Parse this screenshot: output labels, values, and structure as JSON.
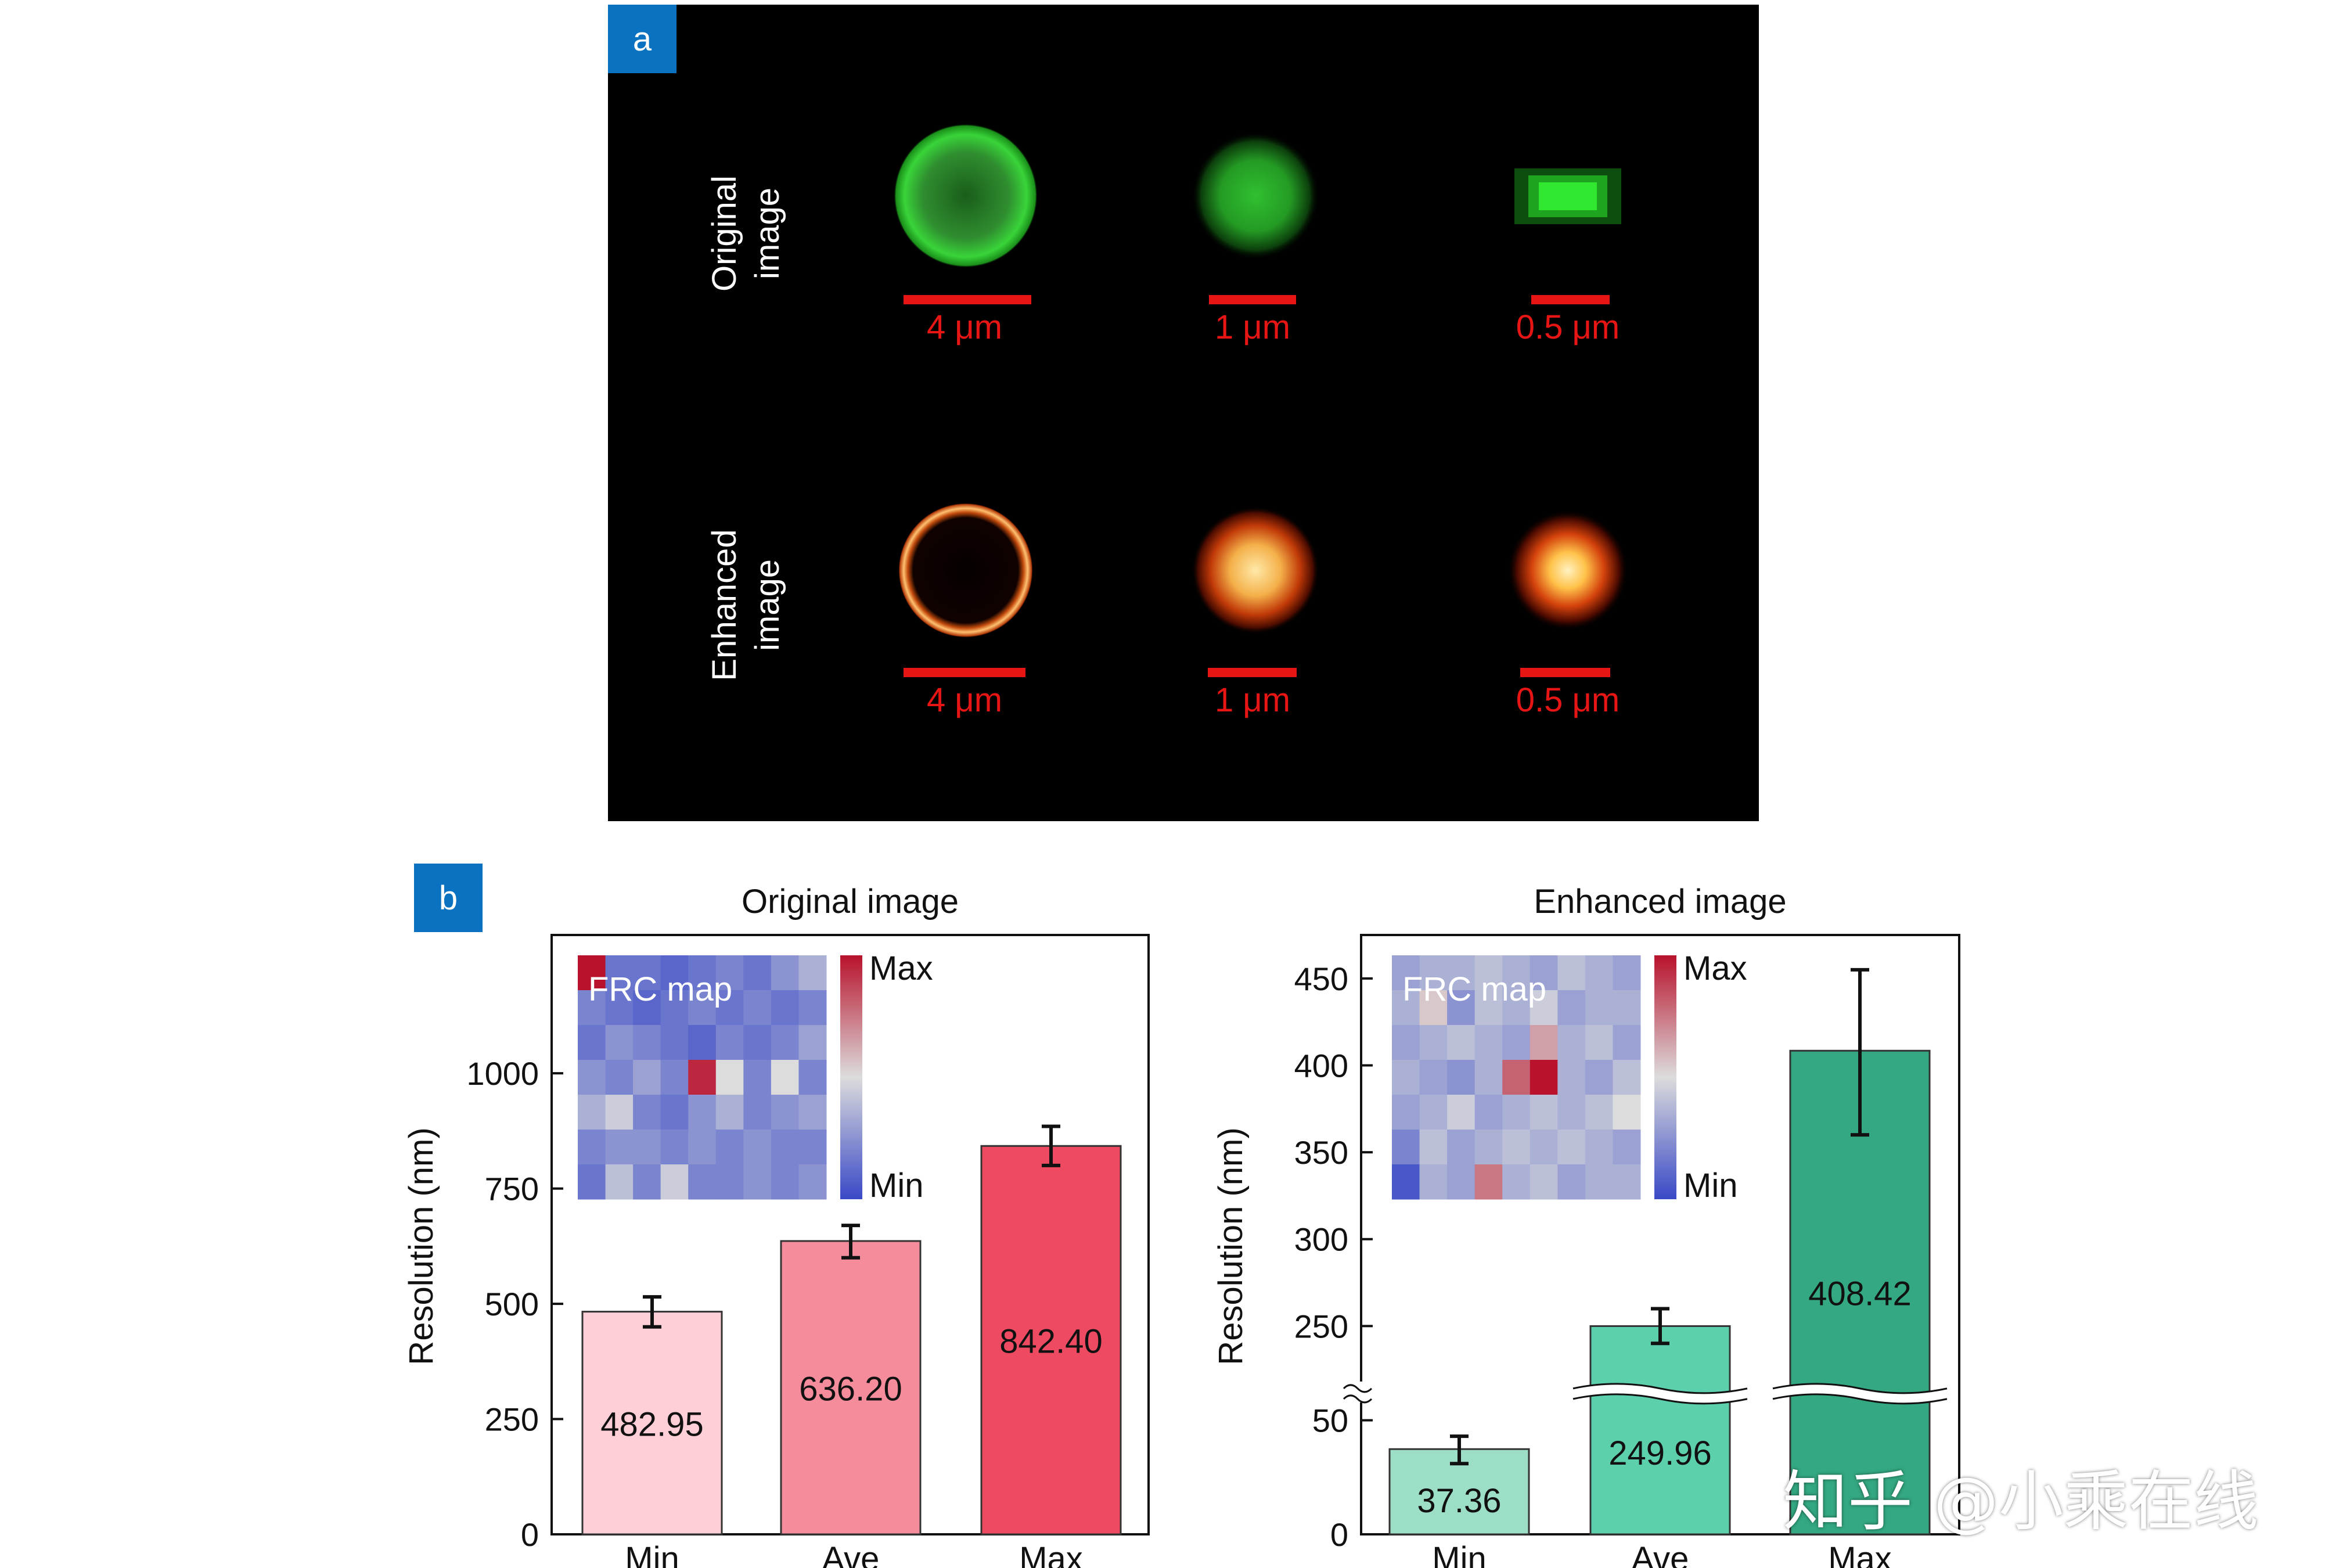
{
  "panel_a": {
    "label": "a",
    "rows": [
      {
        "label_line1": "Original",
        "label_line2": "image"
      },
      {
        "label_line1": "Enhanced",
        "label_line2": "image"
      }
    ],
    "scale_labels": [
      "4 μm",
      "1 μm",
      "0.5 μm"
    ]
  },
  "panel_b": {
    "label": "b"
  },
  "watermark": "知乎 @小乘在线",
  "colors": {
    "background": "#ffffff",
    "panel_a_background": "#000000",
    "tag": "#0a72c0",
    "scalebar": "#e81515",
    "original_bars": [
      "#ffcfd8",
      "#f58c9c",
      "#ee4b62"
    ],
    "enhanced_bars": [
      "#9ddfc6",
      "#5cd0ad",
      "#33a882"
    ],
    "colormap": [
      "#3949c6",
      "#dcdcdc",
      "#b8122c"
    ]
  },
  "chart_data": [
    {
      "type": "bar",
      "title": "Original image",
      "ylabel": "Resolution (nm)",
      "categories": [
        "Min",
        "Ave",
        "Max"
      ],
      "values": [
        482.95,
        636.2,
        842.4
      ],
      "value_labels": [
        "482.95",
        "636.20",
        "842.40"
      ],
      "error": [
        [
          450,
          515
        ],
        [
          600,
          670
        ],
        [
          800,
          885
        ]
      ],
      "ylim": [
        0,
        1300
      ],
      "yticks": [
        0,
        250,
        500,
        750,
        1000
      ],
      "ytick_labels": [
        "0",
        "250",
        "500",
        "750",
        "1000"
      ],
      "inset": {
        "label": "FRC map",
        "colorbar_max": "Max",
        "colorbar_min": "Min",
        "grid": [
          [
            1.0,
            0.15,
            0.15,
            0.1,
            0.15,
            0.2,
            0.15,
            0.25,
            0.35
          ],
          [
            0.2,
            0.15,
            0.1,
            0.15,
            0.2,
            0.15,
            0.2,
            0.15,
            0.2
          ],
          [
            0.15,
            0.25,
            0.2,
            0.15,
            0.1,
            0.2,
            0.15,
            0.2,
            0.3
          ],
          [
            0.25,
            0.2,
            0.3,
            0.2,
            0.95,
            0.5,
            0.2,
            0.5,
            0.2
          ],
          [
            0.35,
            0.45,
            0.2,
            0.15,
            0.25,
            0.35,
            0.2,
            0.25,
            0.3
          ],
          [
            0.2,
            0.25,
            0.25,
            0.2,
            0.25,
            0.2,
            0.25,
            0.2,
            0.2
          ],
          [
            0.15,
            0.4,
            0.2,
            0.45,
            0.2,
            0.2,
            0.25,
            0.2,
            0.25
          ]
        ]
      }
    },
    {
      "type": "bar",
      "title": "Enhanced image",
      "ylabel": "Resolution (nm)",
      "categories": [
        "Min",
        "Ave",
        "Max"
      ],
      "values": [
        37.36,
        249.96,
        408.42
      ],
      "value_labels": [
        "37.36",
        "249.96",
        "408.42"
      ],
      "error": [
        [
          31,
          43
        ],
        [
          240,
          260
        ],
        [
          360,
          455
        ]
      ],
      "axis_break": [
        50,
        225
      ],
      "ylim": [
        0,
        475
      ],
      "yticks": [
        0,
        50,
        250,
        300,
        350,
        400,
        450
      ],
      "ytick_labels": [
        "0",
        "50",
        "250",
        "300",
        "350",
        "400",
        "450"
      ],
      "inset": {
        "label": "FRC map",
        "colorbar_max": "Max",
        "colorbar_min": "Min",
        "grid": [
          [
            0.3,
            0.35,
            0.35,
            0.4,
            0.35,
            0.3,
            0.4,
            0.35,
            0.3
          ],
          [
            0.35,
            0.55,
            0.25,
            0.4,
            0.35,
            0.45,
            0.3,
            0.35,
            0.35
          ],
          [
            0.3,
            0.35,
            0.4,
            0.35,
            0.3,
            0.65,
            0.35,
            0.4,
            0.3
          ],
          [
            0.35,
            0.3,
            0.25,
            0.35,
            0.8,
            1.0,
            0.35,
            0.3,
            0.4
          ],
          [
            0.3,
            0.35,
            0.45,
            0.3,
            0.35,
            0.4,
            0.35,
            0.4,
            0.5
          ],
          [
            0.2,
            0.4,
            0.3,
            0.35,
            0.4,
            0.35,
            0.4,
            0.35,
            0.3
          ],
          [
            0.05,
            0.35,
            0.3,
            0.75,
            0.35,
            0.4,
            0.3,
            0.35,
            0.35
          ]
        ]
      }
    }
  ]
}
